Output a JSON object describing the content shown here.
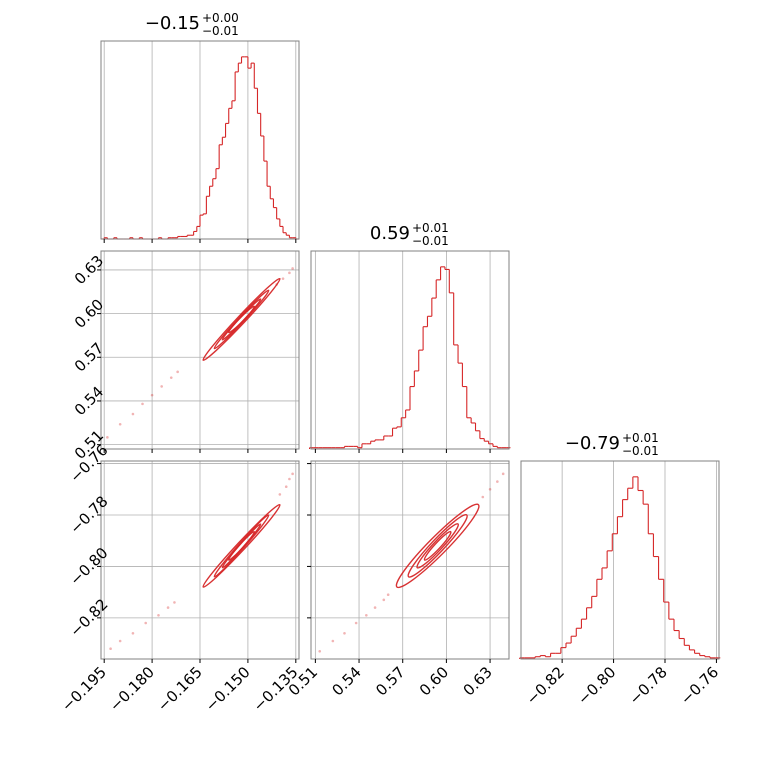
{
  "figure": {
    "type": "corner-plot",
    "colors": {
      "line": "#d62728",
      "grid": "#b0b0b0",
      "frame": "#808080"
    }
  },
  "chart_data": [
    {
      "type": "histogram",
      "panel": "diag-1",
      "title": {
        "main": "−0.15",
        "sup": "+0.00",
        "sub": "−0.01"
      },
      "xlim": [
        -0.196,
        -0.134
      ],
      "xticks": [
        -0.195,
        -0.18,
        -0.165,
        -0.15,
        -0.135
      ],
      "xticklabels": [
        "−0.195",
        "−0.180",
        "−0.165",
        "−0.150",
        "−0.135"
      ],
      "bins": [
        -0.1955,
        -0.1945,
        -0.1935,
        -0.1925,
        -0.1915,
        -0.1905,
        -0.1895,
        -0.1885,
        -0.1875,
        -0.1865,
        -0.1855,
        -0.1845,
        -0.1835,
        -0.1825,
        -0.1815,
        -0.1805,
        -0.1795,
        -0.1785,
        -0.1775,
        -0.1765,
        -0.1755,
        -0.1745,
        -0.1735,
        -0.1725,
        -0.1715,
        -0.1705,
        -0.1695,
        -0.1685,
        -0.1675,
        -0.1665,
        -0.1655,
        -0.1645,
        -0.1635,
        -0.1625,
        -0.1615,
        -0.1605,
        -0.1595,
        -0.1585,
        -0.1575,
        -0.1565,
        -0.1555,
        -0.1545,
        -0.1535,
        -0.1525,
        -0.1515,
        -0.1505,
        -0.1495,
        -0.1485,
        -0.1475,
        -0.1465,
        -0.1455,
        -0.1445,
        -0.1435,
        -0.1425,
        -0.1415,
        -0.1405,
        -0.1395,
        -0.1385,
        -0.1375,
        -0.1365,
        -0.1355,
        -0.1345
      ],
      "counts": [
        0,
        1,
        0,
        0,
        1,
        0,
        0,
        0,
        0,
        1,
        0,
        0,
        1,
        0,
        0,
        0,
        0,
        0,
        1,
        0,
        0,
        1,
        1,
        1,
        2,
        2,
        2,
        3,
        3,
        6,
        10,
        19,
        20,
        34,
        42,
        48,
        56,
        75,
        81,
        92,
        104,
        110,
        133,
        140,
        145,
        145,
        136,
        140,
        120,
        100,
        82,
        62,
        42,
        32,
        25,
        16,
        10,
        5,
        3,
        1,
        1,
        0
      ]
    },
    {
      "type": "histogram",
      "panel": "diag-2",
      "title": {
        "main": "0.59",
        "sup": "+0.01",
        "sub": "−0.01"
      },
      "xlim": [
        0.507,
        0.643
      ],
      "xticks": [
        0.51,
        0.54,
        0.57,
        0.6,
        0.63
      ],
      "xticklabels": [
        "0.51",
        "0.54",
        "0.57",
        "0.60",
        "0.63"
      ],
      "bins": [
        0.5075,
        0.5105,
        0.5135,
        0.5165,
        0.5195,
        0.5225,
        0.5255,
        0.5285,
        0.5315,
        0.5345,
        0.5375,
        0.5405,
        0.5435,
        0.5465,
        0.5495,
        0.5525,
        0.5555,
        0.5585,
        0.5615,
        0.5645,
        0.5675,
        0.5705,
        0.5735,
        0.5765,
        0.5795,
        0.5825,
        0.5855,
        0.5885,
        0.5915,
        0.5945,
        0.5975,
        0.6005,
        0.6035,
        0.6065,
        0.6095,
        0.6125,
        0.6155,
        0.6185,
        0.6215,
        0.6245,
        0.6275,
        0.6305,
        0.6335,
        0.6365,
        0.6395,
        0.6425
      ],
      "counts": [
        1,
        1,
        1,
        1,
        1,
        1,
        1,
        1,
        2,
        2,
        2,
        1,
        4,
        4,
        6,
        7,
        7,
        10,
        10,
        16,
        17,
        24,
        30,
        48,
        60,
        76,
        94,
        102,
        116,
        130,
        140,
        138,
        120,
        80,
        66,
        48,
        24,
        20,
        14,
        8,
        6,
        4,
        2,
        1,
        1,
        1
      ]
    },
    {
      "type": "histogram",
      "panel": "diag-3",
      "title": {
        "main": "−0.79",
        "sup": "+0.01",
        "sub": "−0.01"
      },
      "xlim": [
        -0.836,
        -0.759
      ],
      "xticks": [
        -0.82,
        -0.8,
        -0.78,
        -0.76
      ],
      "xticklabels": [
        "−0.82",
        "−0.80",
        "−0.78",
        "−0.76"
      ],
      "bins": [
        -0.8355,
        -0.8335,
        -0.8315,
        -0.8295,
        -0.8275,
        -0.8255,
        -0.8235,
        -0.8215,
        -0.8195,
        -0.8175,
        -0.8155,
        -0.8135,
        -0.8115,
        -0.8095,
        -0.8075,
        -0.8055,
        -0.8035,
        -0.8015,
        -0.7995,
        -0.7975,
        -0.7955,
        -0.7935,
        -0.7915,
        -0.7895,
        -0.7875,
        -0.7855,
        -0.7835,
        -0.7815,
        -0.7795,
        -0.7775,
        -0.7755,
        -0.7735,
        -0.7715,
        -0.7695,
        -0.7675,
        -0.7655,
        -0.7635,
        -0.7615,
        -0.7595
      ],
      "counts": [
        1,
        1,
        1,
        2,
        3,
        2,
        5,
        5,
        10,
        14,
        20,
        27,
        35,
        45,
        55,
        70,
        80,
        95,
        110,
        125,
        140,
        150,
        160,
        148,
        136,
        110,
        90,
        70,
        50,
        35,
        25,
        18,
        12,
        8,
        5,
        3,
        2,
        1,
        1
      ]
    },
    {
      "type": "2d-density-contour",
      "panel": "lower-2-1",
      "xlim": [
        -0.196,
        -0.134
      ],
      "ylim": [
        0.507,
        0.643
      ],
      "yticks": [
        0.51,
        0.54,
        0.57,
        0.6,
        0.63
      ],
      "yticklabels": [
        "0.51",
        "0.54",
        "0.57",
        "0.60",
        "0.63"
      ],
      "center": [
        -0.152,
        0.596
      ],
      "levels": [
        [
          0.004,
          0.0035,
          0.009
        ],
        [
          0.006,
          0.0055,
          0.014
        ],
        [
          0.0085,
          0.0078,
          0.02
        ],
        [
          0.012,
          0.011,
          0.028
        ]
      ],
      "samples": [
        [
          -0.194,
          0.515
        ],
        [
          -0.19,
          0.524
        ],
        [
          -0.186,
          0.531
        ],
        [
          -0.183,
          0.538
        ],
        [
          -0.18,
          0.544
        ],
        [
          -0.177,
          0.55
        ],
        [
          -0.174,
          0.556
        ],
        [
          -0.172,
          0.56
        ],
        [
          -0.141,
          0.62
        ],
        [
          -0.139,
          0.624
        ],
        [
          -0.137,
          0.628
        ],
        [
          -0.136,
          0.631
        ]
      ]
    },
    {
      "type": "2d-density-contour",
      "panel": "lower-3-1",
      "xlim": [
        -0.196,
        -0.134
      ],
      "ylim": [
        -0.836,
        -0.759
      ],
      "yticks": [
        -0.82,
        -0.8,
        -0.78,
        -0.76
      ],
      "yticklabels": [
        "−0.82",
        "−0.80",
        "−0.78",
        "−0.76"
      ],
      "center": [
        -0.152,
        -0.792
      ],
      "levels": [
        [
          0.004,
          0.002,
          0.0055
        ],
        [
          0.006,
          0.003,
          0.0085
        ],
        [
          0.0085,
          0.0045,
          0.012
        ],
        [
          0.012,
          0.0065,
          0.016
        ]
      ],
      "samples": [
        [
          -0.193,
          -0.832
        ],
        [
          -0.19,
          -0.829
        ],
        [
          -0.186,
          -0.826
        ],
        [
          -0.182,
          -0.822
        ],
        [
          -0.178,
          -0.819
        ],
        [
          -0.175,
          -0.816
        ],
        [
          -0.173,
          -0.814
        ],
        [
          -0.14,
          -0.772
        ],
        [
          -0.138,
          -0.769
        ],
        [
          -0.137,
          -0.766
        ],
        [
          -0.136,
          -0.764
        ]
      ]
    },
    {
      "type": "2d-density-contour",
      "panel": "lower-3-2",
      "xlim": [
        0.507,
        0.643
      ],
      "ylim": [
        -0.836,
        -0.759
      ],
      "center": [
        0.594,
        -0.792
      ],
      "levels": [
        [
          0.009,
          0.0045,
          0.0055
        ],
        [
          0.014,
          0.007,
          0.0085
        ],
        [
          0.02,
          0.01,
          0.012
        ],
        [
          0.028,
          0.014,
          0.016
        ]
      ],
      "samples": [
        [
          0.513,
          -0.833
        ],
        [
          0.522,
          -0.829
        ],
        [
          0.53,
          -0.826
        ],
        [
          0.538,
          -0.822
        ],
        [
          0.545,
          -0.819
        ],
        [
          0.551,
          -0.816
        ],
        [
          0.557,
          -0.813
        ],
        [
          0.56,
          -0.811
        ],
        [
          0.625,
          -0.773
        ],
        [
          0.63,
          -0.77
        ],
        [
          0.635,
          -0.767
        ],
        [
          0.639,
          -0.764
        ]
      ]
    }
  ]
}
